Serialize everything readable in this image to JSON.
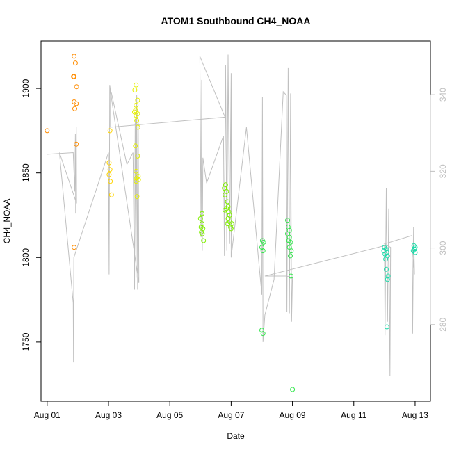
{
  "chart_data": {
    "type": "scatter",
    "title": "ATOM1 Southbound CH4_NOAA",
    "xlabel": "Date",
    "ylabel": "CH4_NOAA",
    "x_ticks": [
      "Aug 01",
      "Aug 03",
      "Aug 05",
      "Aug 07",
      "Aug 09",
      "Aug 11",
      "Aug 13"
    ],
    "x_tick_days": [
      1,
      3,
      5,
      7,
      9,
      11,
      13
    ],
    "xlim_days": [
      0.8,
      13.5
    ],
    "ylim": [
      1715,
      1928
    ],
    "y_ticks": [
      1750,
      1800,
      1850,
      1900
    ],
    "y2_ticks": [
      280,
      300,
      320,
      340
    ],
    "y2lim": [
      260,
      354
    ],
    "grid": false,
    "series": [
      {
        "color": "#FF8C00",
        "points": [
          [
            1.0,
            1875
          ],
          [
            1.88,
            1919
          ],
          [
            1.86,
            1907
          ],
          [
            1.88,
            1907
          ],
          [
            1.92,
            1915
          ],
          [
            1.96,
            1901
          ],
          [
            1.88,
            1892
          ],
          [
            1.95,
            1891
          ],
          [
            1.9,
            1888
          ],
          [
            1.95,
            1867
          ],
          [
            1.88,
            1806
          ]
        ]
      },
      {
        "color": "#FFD400",
        "points": [
          [
            3.05,
            1875
          ],
          [
            3.02,
            1856
          ],
          [
            3.05,
            1852
          ],
          [
            3.02,
            1849
          ],
          [
            3.06,
            1845
          ],
          [
            3.1,
            1837
          ]
        ]
      },
      {
        "color": "#E6F000",
        "points": [
          [
            3.9,
            1902
          ],
          [
            3.86,
            1899
          ],
          [
            3.95,
            1893
          ],
          [
            3.9,
            1890
          ],
          [
            3.88,
            1887
          ],
          [
            3.85,
            1886
          ],
          [
            3.95,
            1885
          ],
          [
            3.9,
            1884
          ],
          [
            3.92,
            1881
          ],
          [
            3.96,
            1877
          ],
          [
            3.88,
            1866
          ],
          [
            3.95,
            1860
          ],
          [
            3.9,
            1851
          ],
          [
            3.97,
            1848
          ],
          [
            3.92,
            1847
          ],
          [
            3.98,
            1846
          ],
          [
            3.9,
            1845
          ],
          [
            3.93,
            1836
          ]
        ]
      },
      {
        "color": "#80F000",
        "points": [
          [
            6.05,
            1826
          ],
          [
            6.0,
            1823
          ],
          [
            6.05,
            1820
          ],
          [
            6.02,
            1818
          ],
          [
            6.08,
            1817
          ],
          [
            6.03,
            1815
          ],
          [
            6.06,
            1814
          ],
          [
            6.1,
            1810
          ],
          [
            6.82,
            1843
          ],
          [
            6.78,
            1841
          ],
          [
            6.85,
            1839
          ],
          [
            6.8,
            1837
          ],
          [
            6.88,
            1833
          ],
          [
            6.9,
            1830
          ],
          [
            6.85,
            1829
          ],
          [
            6.8,
            1828
          ],
          [
            6.92,
            1827
          ],
          [
            6.95,
            1825
          ],
          [
            6.9,
            1823
          ],
          [
            6.96,
            1821
          ],
          [
            6.88,
            1820
          ],
          [
            6.98,
            1818
          ],
          [
            7.0,
            1817
          ],
          [
            7.02,
            1820
          ]
        ]
      },
      {
        "color": "#33E64D",
        "points": [
          [
            8.02,
            1810
          ],
          [
            8.06,
            1809
          ],
          [
            8.0,
            1806
          ],
          [
            8.04,
            1804
          ],
          [
            8.0,
            1757
          ],
          [
            8.04,
            1755
          ],
          [
            8.84,
            1822
          ],
          [
            8.86,
            1818
          ],
          [
            8.9,
            1816
          ],
          [
            8.84,
            1814
          ],
          [
            8.9,
            1812
          ],
          [
            8.88,
            1810
          ],
          [
            8.94,
            1809
          ],
          [
            8.9,
            1806
          ],
          [
            8.96,
            1804
          ],
          [
            8.93,
            1801
          ],
          [
            8.95,
            1789
          ],
          [
            9.0,
            1722
          ]
        ]
      },
      {
        "color": "#1EDCAA",
        "points": [
          [
            12.0,
            1806
          ],
          [
            12.05,
            1805
          ],
          [
            11.98,
            1804
          ],
          [
            12.08,
            1803
          ],
          [
            12.02,
            1802
          ],
          [
            12.1,
            1801
          ],
          [
            12.04,
            1799
          ],
          [
            12.06,
            1793
          ],
          [
            12.12,
            1789
          ],
          [
            12.1,
            1787
          ],
          [
            12.08,
            1759
          ],
          [
            12.96,
            1807
          ],
          [
            13.0,
            1806
          ],
          [
            12.98,
            1805
          ],
          [
            12.94,
            1804
          ],
          [
            13.0,
            1803
          ]
        ]
      }
    ],
    "line_color": "#c0c0c0",
    "altitude_path": [
      [
        1.0,
        1861
      ],
      [
        1.85,
        1862
      ],
      [
        1.9,
        1839
      ],
      [
        1.92,
        1873
      ],
      [
        1.93,
        1826
      ],
      [
        1.95,
        1877
      ],
      [
        1.96,
        1832
      ],
      [
        1.4,
        1862
      ],
      [
        1.85,
        1773
      ],
      [
        1.86,
        1738
      ],
      [
        1.87,
        1800
      ],
      [
        3.0,
        1862
      ],
      [
        3.02,
        1790
      ],
      [
        3.04,
        1902
      ],
      [
        3.06,
        1899
      ],
      [
        3.1,
        1897
      ],
      [
        3.6,
        1855
      ],
      [
        3.8,
        1862
      ],
      [
        3.85,
        1781
      ],
      [
        3.87,
        1882
      ],
      [
        3.9,
        1788
      ],
      [
        3.92,
        1896
      ],
      [
        3.95,
        1781
      ],
      [
        3.97,
        1882
      ],
      [
        3.99,
        1785
      ],
      [
        3.05,
        1900
      ],
      [
        3.05,
        1877
      ],
      [
        6.8,
        1883
      ],
      [
        5.98,
        1919
      ],
      [
        6.02,
        1812
      ],
      [
        6.04,
        1905
      ],
      [
        6.06,
        1804
      ],
      [
        6.08,
        1859
      ],
      [
        6.2,
        1844
      ],
      [
        6.75,
        1872
      ],
      [
        6.78,
        1801
      ],
      [
        6.82,
        1914
      ],
      [
        6.86,
        1804
      ],
      [
        6.9,
        1920
      ],
      [
        6.95,
        1808
      ],
      [
        7.0,
        1909
      ],
      [
        7.02,
        1813
      ],
      [
        7.0,
        1890
      ],
      [
        7.0,
        1800
      ],
      [
        7.5,
        1877
      ],
      [
        8.0,
        1778
      ],
      [
        8.02,
        1895
      ],
      [
        8.04,
        1750
      ],
      [
        8.1,
        1766
      ],
      [
        8.4,
        1787
      ],
      [
        8.7,
        1898
      ],
      [
        8.8,
        1896
      ],
      [
        8.82,
        1768
      ],
      [
        8.86,
        1912
      ],
      [
        8.9,
        1767
      ],
      [
        8.94,
        1897
      ],
      [
        8.97,
        1762
      ],
      [
        9.0,
        1788
      ],
      [
        8.8,
        1789
      ],
      [
        8.1,
        1789
      ],
      [
        8.1,
        1789
      ],
      [
        12.0,
        1807
      ],
      [
        12.02,
        1754
      ],
      [
        12.06,
        1841
      ],
      [
        12.1,
        1762
      ],
      [
        12.14,
        1829
      ],
      [
        12.18,
        1730
      ],
      [
        12.2,
        1806
      ],
      [
        12.0,
        1808
      ],
      [
        12.9,
        1813
      ],
      [
        12.92,
        1755
      ],
      [
        12.95,
        1818
      ],
      [
        12.98,
        1790
      ],
      [
        12.9,
        1809
      ]
    ]
  }
}
